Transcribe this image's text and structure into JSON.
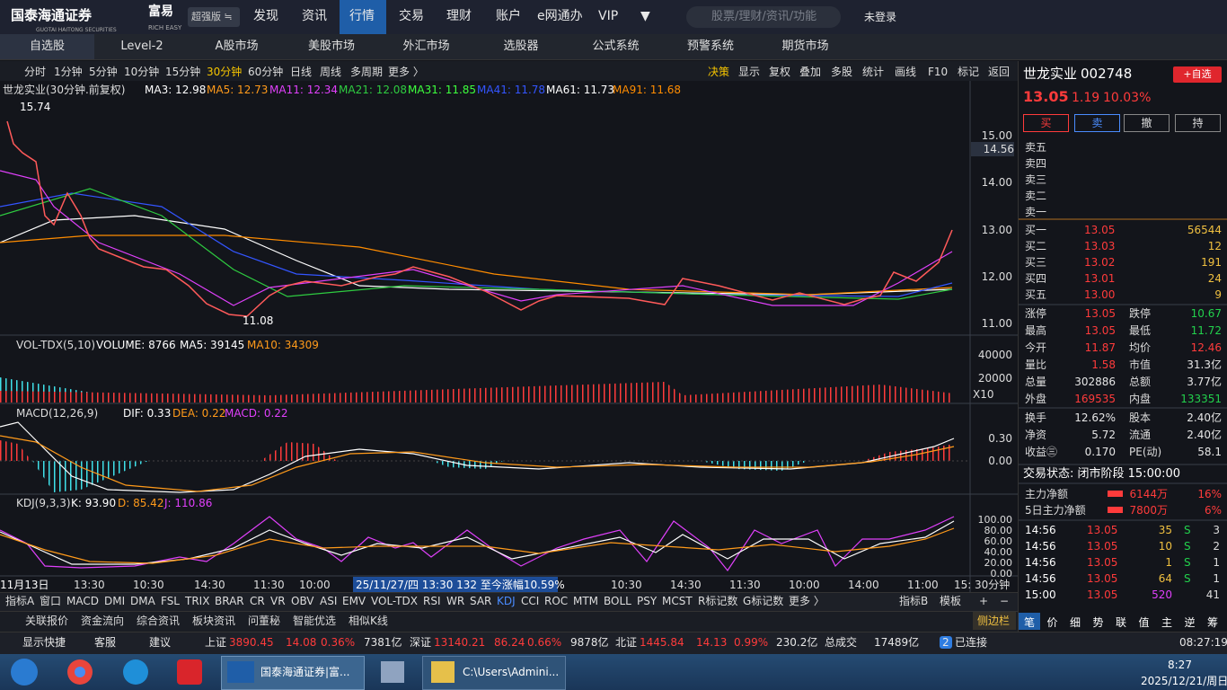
{
  "app": {
    "logo": "国泰海通证券",
    "logo_sub": "GUOTAI HAITONG SECURITIES",
    "brand": "富易",
    "brand_sub": "RICH EASY",
    "edition": "超强版 ≒"
  },
  "top_menu": [
    "发现",
    "资讯",
    "行情",
    "交易",
    "理财",
    "账户",
    "e网通办",
    "VIP",
    "▼"
  ],
  "search_placeholder": "股票/理财/资讯/功能",
  "login": "未登录",
  "tabs": [
    "自选股",
    "Level-2",
    "A股市场",
    "美股市场",
    "外汇市场",
    "选股器",
    "公式系统",
    "预警系统",
    "期货市场"
  ],
  "periods": [
    "分时",
    "1分钟",
    "5分钟",
    "10分钟",
    "15分钟",
    "30分钟",
    "60分钟",
    "日线",
    "周线",
    "多周期",
    "更多 〉"
  ],
  "tools": [
    "决策",
    "显示",
    "复权",
    "叠加",
    "多股",
    "统计",
    "画线",
    "F10",
    "标记",
    "返回"
  ],
  "main_chart": {
    "title": "世龙实业(30分钟.前复权)",
    "indicators": [
      {
        "text": "MA3: 12.98",
        "color": "#ffffff"
      },
      {
        "text": "MA5: 12.73",
        "color": "#ff9a1a"
      },
      {
        "text": "MA11: 12.34",
        "color": "#e040fb"
      },
      {
        "text": "MA21: 12.08",
        "color": "#2ecc40"
      },
      {
        "text": "MA31: 11.85",
        "color": "#3dff3d"
      },
      {
        "text": "MA41: 11.78",
        "color": "#3355ff"
      },
      {
        "text": "MA61: 11.73",
        "color": "#ffffff"
      },
      {
        "text": "MA91: 11.68",
        "color": "#ff8c00"
      }
    ],
    "price_ticks": [
      "15.00",
      "14.00",
      "13.00",
      "12.00",
      "11.00"
    ],
    "current": "14.56",
    "high_label": "15.74",
    "low_label": "11.08"
  },
  "volume": {
    "title": "VOL-TDX(5,10)",
    "indicators": [
      {
        "text": "VOLUME: 8766",
        "color": "#ffffff"
      },
      {
        "text": "MA5: 39145",
        "color": "#ffffff"
      },
      {
        "text": "MA10: 34309",
        "color": "#ff9a1a"
      }
    ],
    "ticks": [
      "40000",
      "20000"
    ],
    "scale": "X10"
  },
  "macd": {
    "title": "MACD(12,26,9)",
    "indicators": [
      {
        "text": "DIF: 0.33",
        "color": "#ffffff"
      },
      {
        "text": "DEA: 0.22",
        "color": "#ff9a1a"
      },
      {
        "text": "MACD: 0.22",
        "color": "#e040fb"
      }
    ],
    "ticks": [
      "0.30",
      "0.00"
    ]
  },
  "kdj": {
    "title": "KDJ(9,3,3)",
    "indicators": [
      {
        "text": "K: 93.90",
        "color": "#ffffff"
      },
      {
        "text": "D: 85.42",
        "color": "#ff9a1a"
      },
      {
        "text": "J: 110.86",
        "color": "#e040fb"
      }
    ],
    "ticks": [
      "100.00",
      "80.00",
      "60.00",
      "40.00",
      "20.00",
      "0.00"
    ]
  },
  "x_axis": {
    "labels": [
      "11月13日",
      "13:30",
      "10:30",
      "14:30",
      "11:30",
      "10:00",
      "10:30",
      "14:30",
      "11:30",
      "10:00",
      "14:00",
      "11:00",
      "15:"
    ],
    "cursor": "25/11/27/四 13:30 132 至今涨幅10.59%",
    "period": "30分钟"
  },
  "indicator_tabs": [
    "指标A",
    "窗口",
    "MACD",
    "DMI",
    "DMA",
    "FSL",
    "TRIX",
    "BRAR",
    "CR",
    "VR",
    "OBV",
    "ASI",
    "EMV",
    "VOL-TDX",
    "RSI",
    "WR",
    "SAR",
    "KDJ",
    "CCI",
    "ROC",
    "MTM",
    "BOLL",
    "PSY",
    "MCST",
    "R标记数",
    "G标记数",
    "更多 〉"
  ],
  "indicator_tabs_right": [
    "指标B",
    "模板",
    "+",
    "−"
  ],
  "bottom_tabs": [
    "关联报价",
    "资金流向",
    "综合资讯",
    "板块资讯",
    "问董秘",
    "智能优选",
    "相似K线"
  ],
  "sidebar": "侧边栏",
  "status": [
    {
      "text": "显示快捷",
      "tone": "flat"
    },
    {
      "text": "客服",
      "tone": "flat"
    },
    {
      "text": "建议",
      "tone": "flat"
    },
    {
      "text": "上证",
      "tone": "flat"
    },
    {
      "text": "3890.45",
      "tone": "up"
    },
    {
      "text": "14.08",
      "tone": "up"
    },
    {
      "text": "0.36%",
      "tone": "up"
    },
    {
      "text": "7381亿",
      "tone": "flat"
    },
    {
      "text": "深证",
      "tone": "flat"
    },
    {
      "text": "13140.21",
      "tone": "up"
    },
    {
      "text": "86.24",
      "tone": "up"
    },
    {
      "text": "0.66%",
      "tone": "up"
    },
    {
      "text": "9878亿",
      "tone": "flat"
    },
    {
      "text": "北证",
      "tone": "flat"
    },
    {
      "text": "1445.84",
      "tone": "up"
    },
    {
      "text": "14.13",
      "tone": "up"
    },
    {
      "text": "0.99%",
      "tone": "up"
    },
    {
      "text": "230.2亿",
      "tone": "flat"
    },
    {
      "text": "总成交",
      "tone": "flat"
    },
    {
      "text": "17489亿",
      "tone": "flat"
    },
    {
      "text": "2",
      "tone": "flat"
    },
    {
      "text": "已连接",
      "tone": "flat"
    },
    {
      "text": "08:27:19",
      "tone": "flat"
    }
  ],
  "taskbar": {
    "apps": [
      "国泰海通证券|富...",
      "C:\\Users\\Admini..."
    ],
    "time": "8:27",
    "date": "2025/12/21/周日"
  },
  "quote": {
    "name": "世龙实业",
    "code": "002748",
    "watch": "+自选",
    "price": "13.05",
    "change": "1.19",
    "pct": "10.03%",
    "actions": [
      "买",
      "卖",
      "撤",
      "持"
    ],
    "sells": [
      "卖五",
      "卖四",
      "卖三",
      "卖二",
      "卖一"
    ],
    "buys": [
      {
        "label": "买一",
        "price": "13.05",
        "vol": "56544"
      },
      {
        "label": "买二",
        "price": "13.03",
        "vol": "12"
      },
      {
        "label": "买三",
        "price": "13.02",
        "vol": "191"
      },
      {
        "label": "买四",
        "price": "13.01",
        "vol": "24"
      },
      {
        "label": "买五",
        "price": "13.00",
        "vol": "9"
      }
    ],
    "stats": [
      [
        {
          "label": "涨停",
          "value": "13.05",
          "tone": "up"
        },
        {
          "label": "跌停",
          "value": "10.67",
          "tone": "down"
        }
      ],
      [
        {
          "label": "最高",
          "value": "13.05",
          "tone": "up"
        },
        {
          "label": "最低",
          "value": "11.72",
          "tone": "down"
        }
      ],
      [
        {
          "label": "今开",
          "value": "11.87",
          "tone": "up"
        },
        {
          "label": "均价",
          "value": "12.46",
          "tone": "up"
        }
      ],
      [
        {
          "label": "量比",
          "value": "1.58",
          "tone": "up"
        },
        {
          "label": "市值",
          "value": "31.3亿",
          "tone": "flat"
        }
      ],
      [
        {
          "label": "总量",
          "value": "302886",
          "tone": "flat"
        },
        {
          "label": "总额",
          "value": "3.77亿",
          "tone": "flat"
        }
      ],
      [
        {
          "label": "外盘",
          "value": "169535",
          "tone": "up"
        },
        {
          "label": "内盘",
          "value": "133351",
          "tone": "down"
        }
      ],
      [
        {
          "label": "换手",
          "value": "12.62%",
          "tone": "flat"
        },
        {
          "label": "股本",
          "value": "2.40亿",
          "tone": "flat"
        }
      ],
      [
        {
          "label": "净资",
          "value": "5.72",
          "tone": "flat"
        },
        {
          "label": "流通",
          "value": "2.40亿",
          "tone": "flat"
        }
      ],
      [
        {
          "label": "收益㊂",
          "value": "0.170",
          "tone": "flat"
        },
        {
          "label": "PE(动)",
          "value": "58.1",
          "tone": "flat"
        }
      ]
    ],
    "trade_status": "交易状态: 闭市阶段 15:00:00",
    "funds": [
      {
        "label": "主力净额",
        "value": "6144万",
        "pct": "16%"
      },
      {
        "label": "5日主力净额",
        "value": "7800万",
        "pct": "6%"
      }
    ],
    "trades": [
      {
        "time": "14:56",
        "price": "13.05",
        "vol": "35",
        "side": "S",
        "count": "3"
      },
      {
        "time": "14:56",
        "price": "13.05",
        "vol": "10",
        "side": "S",
        "count": "2"
      },
      {
        "time": "14:56",
        "price": "13.05",
        "vol": "1",
        "side": "S",
        "count": "1"
      },
      {
        "time": "14:56",
        "price": "13.05",
        "vol": "64",
        "side": "S",
        "count": "1"
      },
      {
        "time": "15:00",
        "price": "13.05",
        "vol": "520",
        "count": "41"
      }
    ],
    "panel_tabs": [
      "笔",
      "价",
      "细",
      "势",
      "联",
      "值",
      "主",
      "逆",
      "筹"
    ]
  }
}
